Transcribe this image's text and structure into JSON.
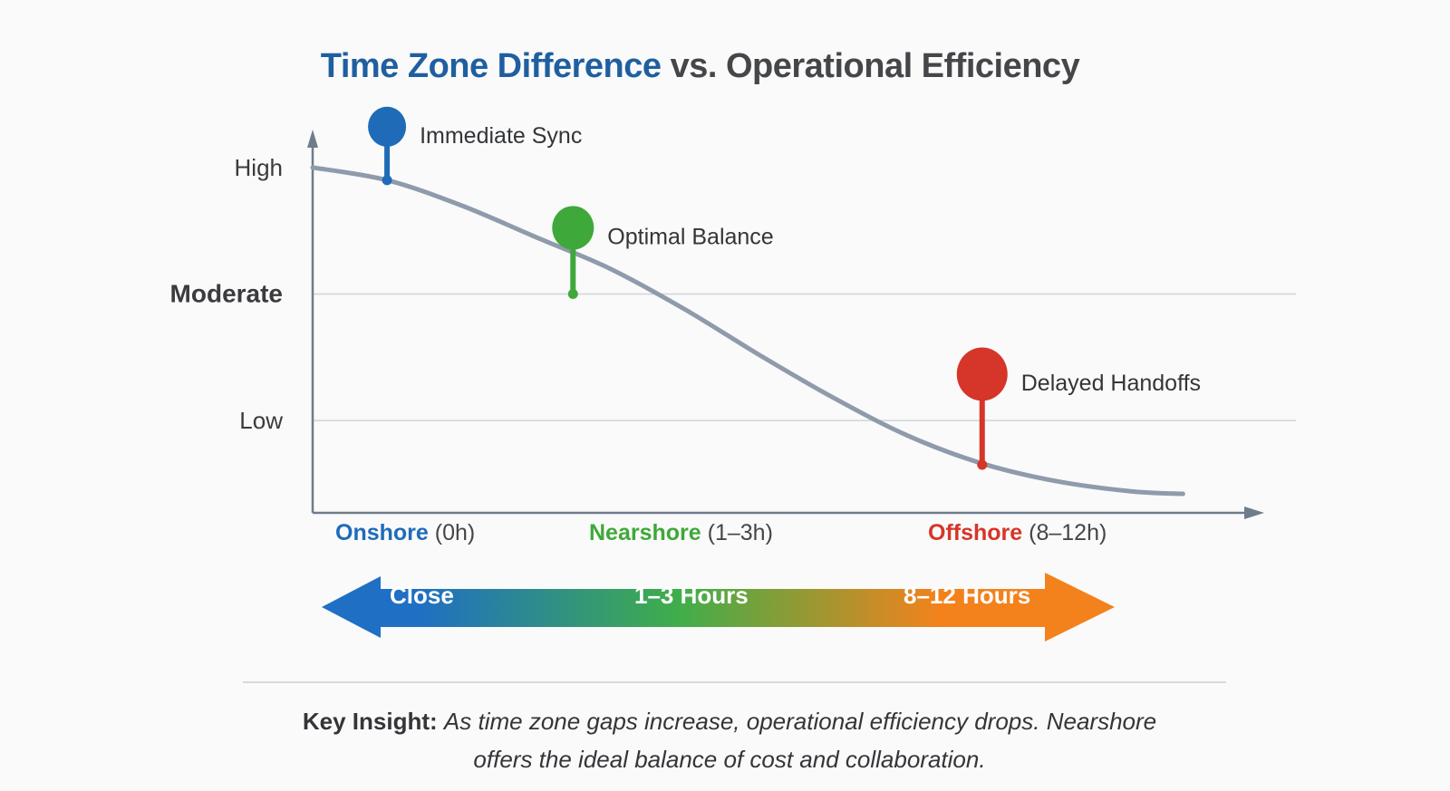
{
  "chart_data": {
    "type": "line",
    "title_part1": "Time Zone Difference",
    "title_part2": "vs. Operational Efficiency",
    "xlabel": "Time Zone Difference",
    "ylabel": "Operational Efficiency",
    "y_ticks": [
      "High",
      "Moderate",
      "Low"
    ],
    "y_tick_values": [
      3,
      2,
      1
    ],
    "ylim": [
      0.27,
      3.3
    ],
    "xlim": [
      0,
      12
    ],
    "grid": "horizontal at Moderate and Low",
    "series": [
      {
        "name": "Operational Efficiency",
        "color": "#8f9bab",
        "x": [
          0,
          1,
          2,
          3,
          4,
          5,
          6,
          7,
          8,
          9,
          10,
          11,
          11.7
        ],
        "y": [
          3.0,
          2.9,
          2.7,
          2.45,
          2.2,
          1.88,
          1.52,
          1.18,
          0.88,
          0.66,
          0.52,
          0.44,
          0.42
        ]
      }
    ],
    "annotations": [
      {
        "label": "Immediate Sync",
        "x": 1.0,
        "y": 2.9,
        "color": "#1f6bb8"
      },
      {
        "label": "Optimal Balance",
        "x": 3.5,
        "y": 2.0,
        "color": "#3fa83a"
      },
      {
        "label": "Delayed Handoffs",
        "x": 9.0,
        "y": 0.65,
        "color": "#d63529"
      }
    ],
    "categories": [
      {
        "name": "Onshore",
        "range": "(0h)",
        "color": "#1f6bb8"
      },
      {
        "name": "Nearshore",
        "range": "(1–3h)",
        "color": "#3fa83a"
      },
      {
        "name": "Offshore",
        "range": "(8–12h)",
        "color": "#d63529"
      }
    ],
    "scale_arrow": {
      "labels": [
        "Close",
        "1–3 Hours",
        "8–12 Hours"
      ],
      "gradient_colors": [
        "#1f6fc4",
        "#3fae4a",
        "#f3821c"
      ]
    }
  },
  "insight": {
    "label": "Key Insight:",
    "text": "As time zone gaps increase, operational efficiency drops. Nearshore offers the ideal balance of cost and collaboration."
  }
}
